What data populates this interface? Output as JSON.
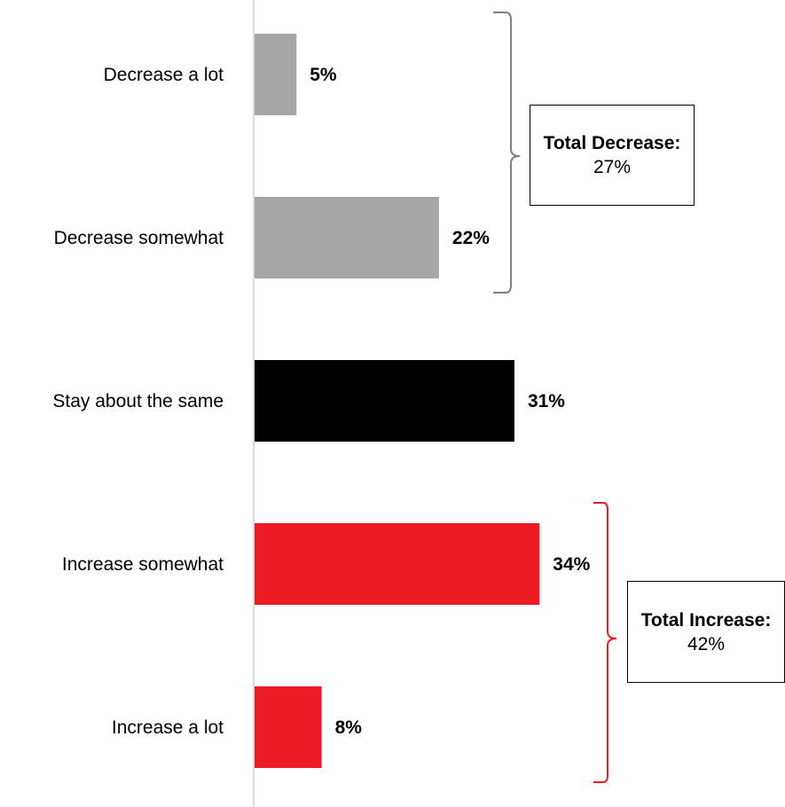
{
  "chart_data": {
    "type": "bar",
    "orientation": "horizontal",
    "categories": [
      "Decrease a lot",
      "Decrease somewhat",
      "Stay about the same",
      "Increase somewhat",
      "Increase a lot"
    ],
    "values": [
      5,
      22,
      31,
      34,
      8
    ],
    "value_labels": [
      "5%",
      "22%",
      "31%",
      "34%",
      "8%"
    ],
    "bar_colors": [
      "#a6a6a6",
      "#a6a6a6",
      "#000000",
      "#ed1c24",
      "#ed1c24"
    ],
    "xlim": [
      0,
      100
    ],
    "grid": false,
    "legend": "none",
    "annotations": [
      {
        "group": "decrease",
        "title": "Total Decrease:",
        "value": "27%",
        "covers": [
          "Decrease a lot",
          "Decrease somewhat"
        ],
        "bracket_color": "#7f7f7f"
      },
      {
        "group": "increase",
        "title": "Total Increase:",
        "value": "42%",
        "covers": [
          "Increase somewhat",
          "Increase a lot"
        ],
        "bracket_color": "#ed1c24"
      }
    ]
  }
}
